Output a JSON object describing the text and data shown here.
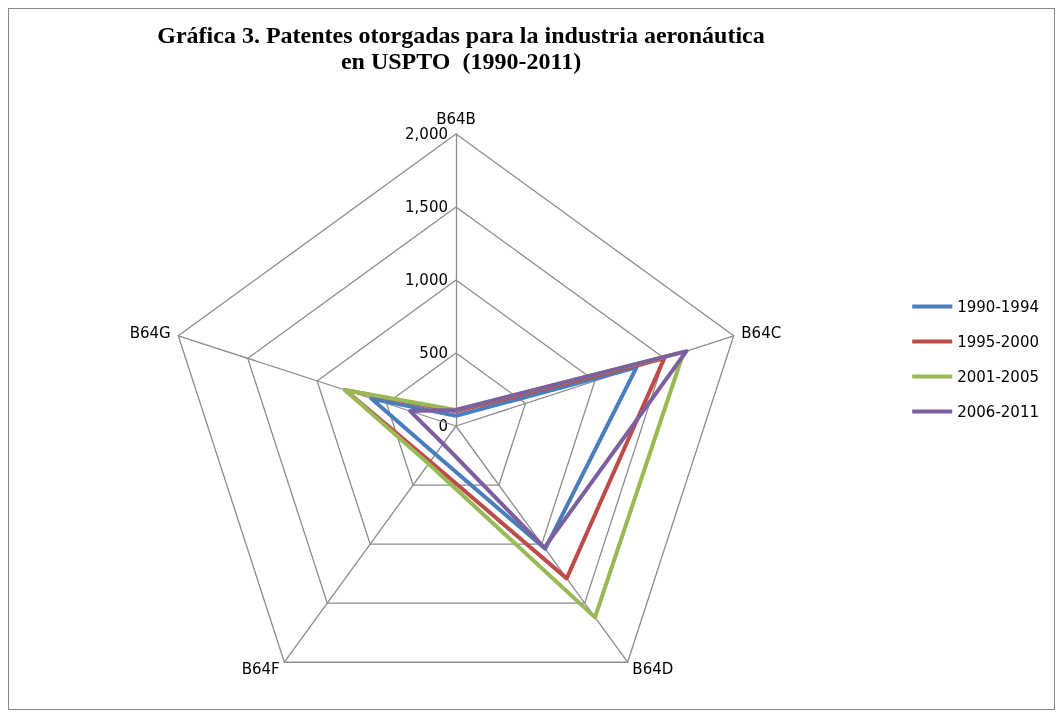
{
  "chart_data": {
    "type": "radar",
    "title": "Gráfica 3. Patentes otorgadas para la industria aeronáutica\nen USPTO  (1990-2011)",
    "categories": [
      "B64B",
      "B64C",
      "B64D",
      "B64F",
      "B64G"
    ],
    "ylim": [
      0,
      2000
    ],
    "yticks": [
      0,
      {
        "value": 500,
        "label": "500"
      },
      {
        "value": 1000,
        "label": "1,000"
      },
      {
        "value": 1500,
        "label": "1,500"
      },
      {
        "value": 2000,
        "label": "2,000"
      }
    ],
    "grid": true,
    "legend": "right",
    "marker": "none",
    "line_style": "solid",
    "series": [
      {
        "name": "1990-1994",
        "color": "#4a7ebb",
        "values": [
          70,
          1300,
          1040,
          240,
          610
        ]
      },
      {
        "name": "1995-2000",
        "color": "#be4b48",
        "values": [
          100,
          1500,
          1290,
          300,
          800
        ]
      },
      {
        "name": "2001-2005",
        "color": "#98b954",
        "values": [
          110,
          1640,
          1620,
          320,
          800
        ]
      },
      {
        "name": "2006-2011",
        "color": "#7d5fa0",
        "values": [
          110,
          1660,
          1030,
          150,
          330
        ]
      }
    ]
  }
}
